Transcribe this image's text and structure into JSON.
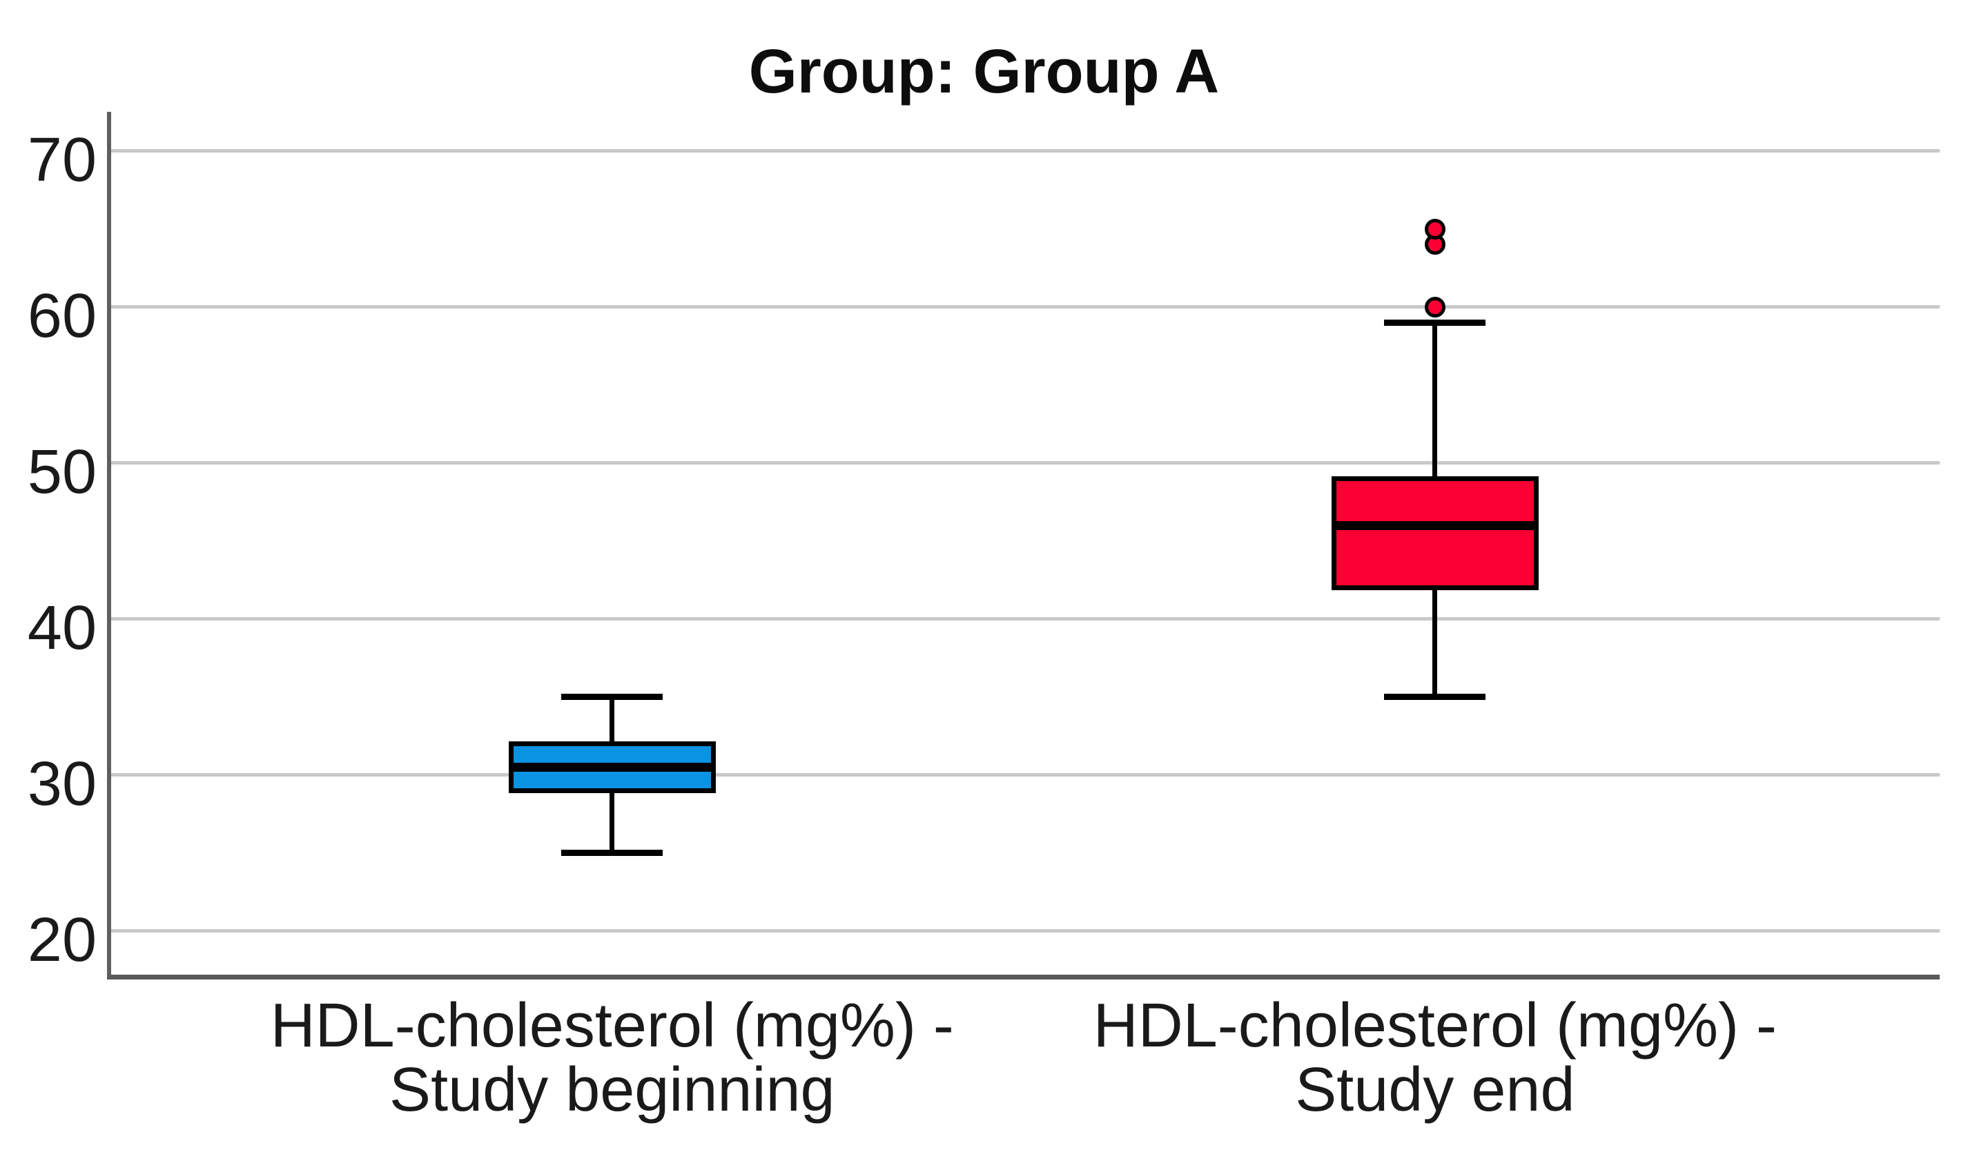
{
  "chart_data": {
    "type": "boxplot",
    "title": "Group: Group A",
    "xlabel": "",
    "ylabel": "",
    "y_axis": {
      "ticks": [
        70,
        60,
        50,
        40,
        30,
        20
      ],
      "top_value": 72.5,
      "bottom_value": 17.2,
      "grid": true
    },
    "categories": [
      "HDL-cholesterol (mg%) -\nStudy beginning",
      "HDL-cholesterol (mg%) -\nStudy end"
    ],
    "series": [
      {
        "name": "HDL-cholesterol (mg%) - Study beginning",
        "color": "#0a93e2",
        "whisker_low": 25,
        "q1": 29,
        "median": 30.5,
        "q3": 32,
        "whisker_high": 35,
        "outliers": [],
        "center_x_frac": 0.274
      },
      {
        "name": "HDL-cholesterol (mg%) - Study end",
        "color": "#fb0032",
        "whisker_low": 35,
        "q1": 42,
        "median": 46,
        "q3": 49,
        "whisker_high": 59,
        "outliers": [
          60,
          64,
          65
        ],
        "center_x_frac": 0.724
      }
    ],
    "style": {
      "gridline_color": "#c9c9c9",
      "axis_color": "#5f5f5f",
      "stroke_color": "#000000",
      "box_width_frac": 0.1133,
      "legend": "none"
    }
  }
}
